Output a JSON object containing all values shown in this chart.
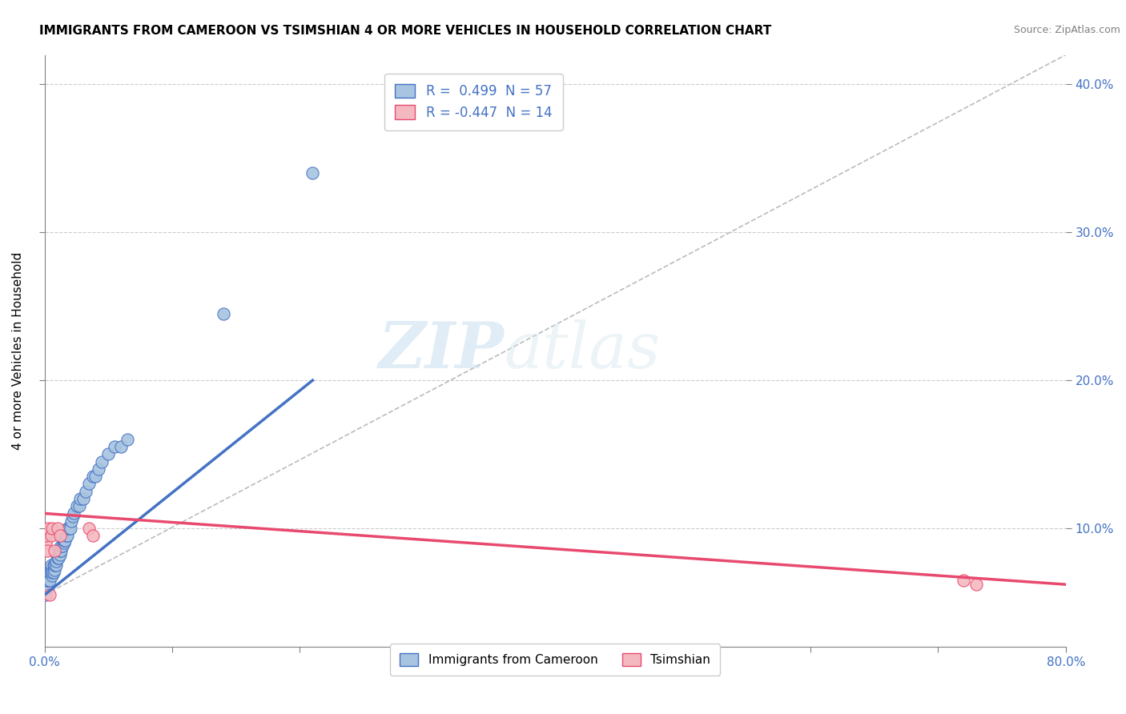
{
  "title": "IMMIGRANTS FROM CAMEROON VS TSIMSHIAN 4 OR MORE VEHICLES IN HOUSEHOLD CORRELATION CHART",
  "source": "Source: ZipAtlas.com",
  "ylabel": "4 or more Vehicles in Household",
  "xlim": [
    0.0,
    0.8
  ],
  "ylim": [
    0.02,
    0.42
  ],
  "r_cameroon": 0.499,
  "n_cameroon": 57,
  "r_tsimshian": -0.447,
  "n_tsimshian": 14,
  "legend_label_1": "Immigrants from Cameroon",
  "legend_label_2": "Tsimshian",
  "color_cameroon": "#a8c4e0",
  "color_tsimshian": "#f4b8c0",
  "color_trend_cameroon": "#4472c4",
  "color_trend_tsimshian": "#e84a6f",
  "watermark_zip": "ZIP",
  "watermark_atlas": "atlas",
  "background_color": "#ffffff",
  "blue_scatter_x": [
    0.001,
    0.001,
    0.001,
    0.002,
    0.002,
    0.003,
    0.003,
    0.003,
    0.004,
    0.004,
    0.005,
    0.005,
    0.005,
    0.006,
    0.006,
    0.007,
    0.007,
    0.008,
    0.008,
    0.009,
    0.009,
    0.01,
    0.01,
    0.01,
    0.011,
    0.012,
    0.012,
    0.013,
    0.013,
    0.014,
    0.015,
    0.015,
    0.016,
    0.017,
    0.018,
    0.018,
    0.019,
    0.02,
    0.021,
    0.022,
    0.023,
    0.025,
    0.027,
    0.028,
    0.03,
    0.032,
    0.035,
    0.038,
    0.04,
    0.042,
    0.045,
    0.05,
    0.055,
    0.06,
    0.065,
    0.14,
    0.21
  ],
  "blue_scatter_y": [
    0.055,
    0.06,
    0.065,
    0.06,
    0.065,
    0.065,
    0.068,
    0.07,
    0.065,
    0.07,
    0.07,
    0.072,
    0.075,
    0.068,
    0.07,
    0.07,
    0.075,
    0.072,
    0.075,
    0.075,
    0.078,
    0.08,
    0.082,
    0.085,
    0.08,
    0.082,
    0.085,
    0.085,
    0.088,
    0.088,
    0.09,
    0.092,
    0.092,
    0.095,
    0.095,
    0.1,
    0.1,
    0.1,
    0.105,
    0.108,
    0.11,
    0.115,
    0.115,
    0.12,
    0.12,
    0.125,
    0.13,
    0.135,
    0.135,
    0.14,
    0.145,
    0.15,
    0.155,
    0.155,
    0.16,
    0.245,
    0.34
  ],
  "pink_scatter_x": [
    0.001,
    0.001,
    0.002,
    0.003,
    0.004,
    0.005,
    0.006,
    0.008,
    0.01,
    0.012,
    0.035,
    0.038,
    0.72,
    0.73
  ],
  "pink_scatter_y": [
    0.09,
    0.095,
    0.085,
    0.1,
    0.055,
    0.095,
    0.1,
    0.085,
    0.1,
    0.095,
    0.1,
    0.095,
    0.065,
    0.062
  ],
  "blue_trend_x0": 0.0,
  "blue_trend_x1": 0.21,
  "blue_trend_y0": 0.055,
  "blue_trend_y1": 0.2,
  "pink_trend_x0": 0.0,
  "pink_trend_x1": 0.8,
  "pink_trend_y0": 0.11,
  "pink_trend_y1": 0.062,
  "dashed_trend_x0": 0.0,
  "dashed_trend_x1": 0.8,
  "dashed_trend_y0": 0.055,
  "dashed_trend_y1": 0.42,
  "grid_color": "#cccccc",
  "title_fontsize": 11,
  "axis_label_color": "#4472c4",
  "y_ticks": [
    0.1,
    0.2,
    0.3,
    0.4
  ],
  "y_tick_labels": [
    "10.0%",
    "20.0%",
    "30.0%",
    "40.0%"
  ],
  "x_ticks": [
    0.0,
    0.1,
    0.2,
    0.3,
    0.4,
    0.5,
    0.6,
    0.7,
    0.8
  ],
  "x_tick_labels": [
    "0.0%",
    "",
    "",
    "",
    "",
    "",
    "",
    "",
    "80.0%"
  ]
}
